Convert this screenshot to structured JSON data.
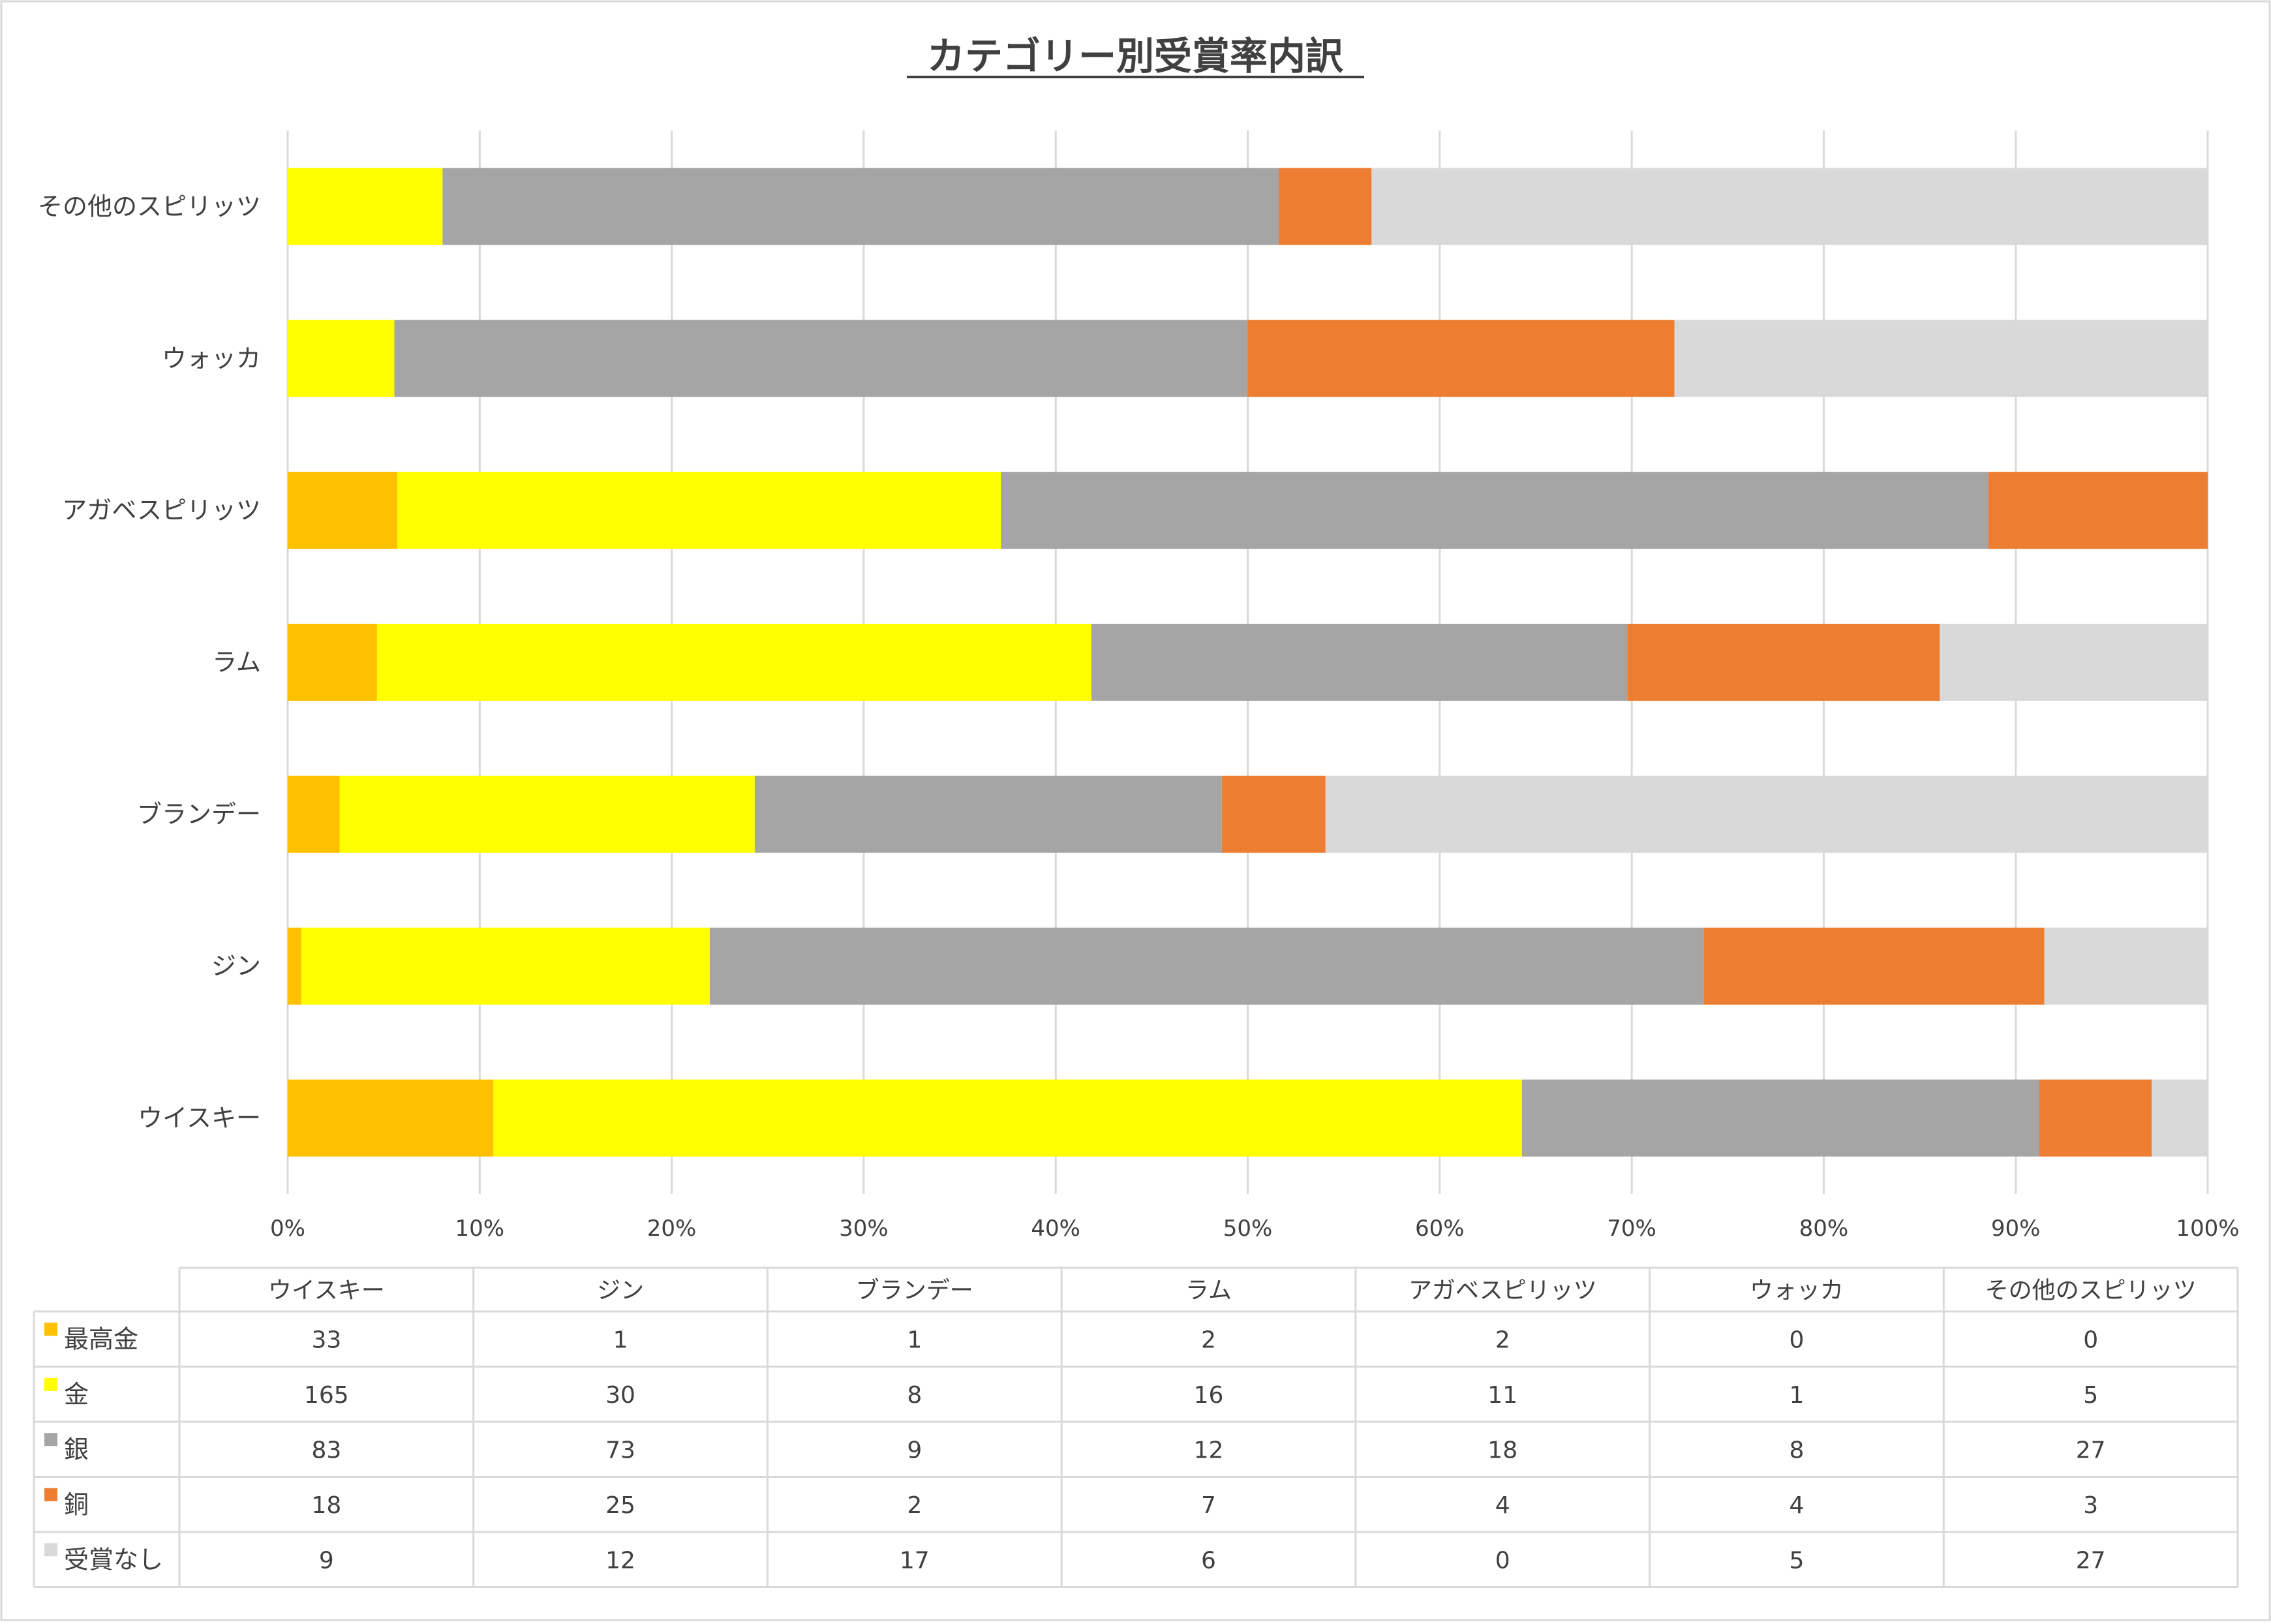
{
  "chart_data": {
    "type": "bar",
    "orientation": "horizontal",
    "stacking": "percent",
    "title": "カテゴリー別受賞率内訳",
    "categories": [
      "ウイスキー",
      "ジン",
      "ブランデー",
      "ラム",
      "アガベスピリッツ",
      "ウォッカ",
      "その他のスピリッツ"
    ],
    "xlim": [
      0,
      100
    ],
    "x_ticks": [
      "0%",
      "10%",
      "20%",
      "30%",
      "40%",
      "50%",
      "60%",
      "70%",
      "80%",
      "90%",
      "100%"
    ],
    "grid": true,
    "legend": "data-table-below",
    "series": [
      {
        "name": "最高金",
        "color": "#FFC000",
        "values": [
          33,
          1,
          1,
          2,
          2,
          0,
          0
        ]
      },
      {
        "name": "金",
        "color": "#FFFF00",
        "values": [
          165,
          30,
          8,
          16,
          11,
          1,
          5
        ]
      },
      {
        "name": "銀",
        "color": "#A5A5A5",
        "values": [
          83,
          73,
          9,
          12,
          18,
          8,
          27
        ]
      },
      {
        "name": "銅",
        "color": "#ED7D31",
        "values": [
          18,
          25,
          2,
          7,
          4,
          4,
          3
        ]
      },
      {
        "name": "受賞なし",
        "color": "#D9D9D9",
        "values": [
          9,
          12,
          17,
          6,
          0,
          5,
          27
        ]
      }
    ]
  }
}
